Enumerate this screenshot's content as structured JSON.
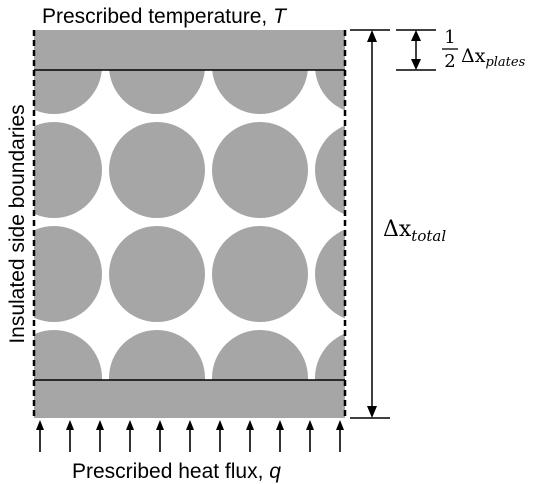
{
  "labels": {
    "top": "Prescribed temperature, ",
    "top_var": "T",
    "bottom": "Prescribed heat flux, ",
    "bottom_var": "q",
    "side": "Insulated side boundaries"
  },
  "dimensions": {
    "total_symbol": "Δx",
    "total_sub": "total",
    "plates_frac_num": "1",
    "plates_frac_den": "2",
    "plates_symbol": "Δx",
    "plates_sub": "plates"
  },
  "colors": {
    "fill": "#a6a6a6",
    "line": "#000000",
    "background": "#ffffff"
  },
  "icons": [
    "up-arrow-icon"
  ]
}
